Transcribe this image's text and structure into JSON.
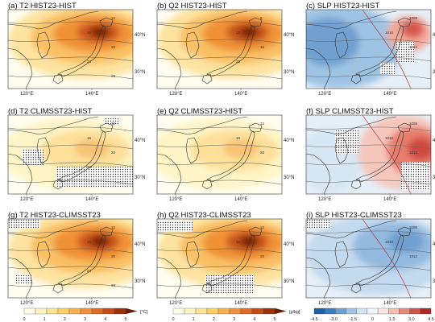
{
  "chart_data": [
    {
      "id": "a",
      "type": "heatmap",
      "title": "(a) T2 HIST23-HIST",
      "variable": "T2",
      "field": "warm",
      "x_ticks": [
        "120°E",
        "140°E"
      ],
      "y_ticks": [
        "40°N",
        "30°N"
      ],
      "contour_labels": [
        "12",
        "16",
        "20",
        "24",
        "28"
      ],
      "hatched": false
    },
    {
      "id": "b",
      "type": "heatmap",
      "title": "(b) Q2 HIST23-HIST",
      "variable": "Q2",
      "field": "warm",
      "x_ticks": [
        "120°E",
        "140°E"
      ],
      "y_ticks": [
        "40°N",
        "30°N"
      ],
      "contour_labels": [
        "8",
        "12",
        "16",
        "20"
      ],
      "hatched": false
    },
    {
      "id": "c",
      "type": "heatmap",
      "title": "(c) SLP HIST23-HIST",
      "variable": "SLP",
      "field": "div_cool_east_warm",
      "x_ticks": [
        "120°E",
        "140°E"
      ],
      "y_ticks": [
        "40°N",
        "30°N"
      ],
      "contour_labels": [
        "1008",
        "1010",
        "1012"
      ],
      "hatched": true
    },
    {
      "id": "d",
      "type": "heatmap",
      "title": "(d) T2 CLIMSST23-HIST",
      "variable": "T2",
      "field": "weak_warm",
      "x_ticks": [
        "120°E",
        "140°E"
      ],
      "y_ticks": [
        "40°N",
        "30°N"
      ],
      "contour_labels": [
        "12",
        "16",
        "20",
        "24"
      ],
      "hatched": true
    },
    {
      "id": "e",
      "type": "heatmap",
      "title": "(e) Q2 CLIMSST23-HIST",
      "variable": "Q2",
      "field": "weak_warm",
      "x_ticks": [
        "120°E",
        "140°E"
      ],
      "y_ticks": [
        "40°N",
        "30°N"
      ],
      "contour_labels": [
        "12",
        "16",
        "20"
      ],
      "hatched": false
    },
    {
      "id": "f",
      "type": "heatmap",
      "title": "(f) SLP CLIMSST23-HIST",
      "variable": "SLP",
      "field": "div_warm_east",
      "x_ticks": [
        "120°E",
        "140°E"
      ],
      "y_ticks": [
        "40°N",
        "30°N"
      ],
      "contour_labels": [
        "1008",
        "1010",
        "1012"
      ],
      "hatched": true
    },
    {
      "id": "g",
      "type": "heatmap",
      "title": "(g) T2 HIST23-CLIMSST23",
      "variable": "T2",
      "field": "warm",
      "x_ticks": [
        "120°E",
        "140°E"
      ],
      "y_ticks": [
        "40°N",
        "30°N"
      ],
      "contour_labels": [
        "12",
        "16",
        "20",
        "24",
        "28"
      ],
      "hatched": true
    },
    {
      "id": "h",
      "type": "heatmap",
      "title": "(h) Q2 HIST23-CLIMSST23",
      "variable": "Q2",
      "field": "warm",
      "x_ticks": [
        "120°E",
        "140°E"
      ],
      "y_ticks": [
        "40°N",
        "30°N"
      ],
      "contour_labels": [
        "12",
        "16",
        "20"
      ],
      "hatched": true
    },
    {
      "id": "i",
      "type": "heatmap",
      "title": "(i) SLP HIST23-CLIMSST23",
      "variable": "SLP",
      "field": "div_cool",
      "x_ticks": [
        "120°E",
        "140°E"
      ],
      "y_ticks": [
        "40°N",
        "30°N"
      ],
      "contour_labels": [
        "1008",
        "1010",
        "1012"
      ],
      "hatched": true
    }
  ],
  "colorbars": [
    {
      "id": "t2",
      "unit": "[°C]",
      "ticks": [
        "0",
        "1",
        "2",
        "3",
        "4",
        "5"
      ],
      "colors": [
        "#fffde6",
        "#fff3bf",
        "#ffe591",
        "#fdcf5f",
        "#f9b14b",
        "#f28f3a",
        "#e06a24",
        "#c84b14",
        "#a0320b",
        "#6e1c05"
      ]
    },
    {
      "id": "q2",
      "unit": "[g/kg]",
      "ticks": [
        "0",
        "1",
        "2",
        "3",
        "4",
        "5"
      ],
      "colors": [
        "#fffde6",
        "#fff3bf",
        "#ffe591",
        "#fdcf5f",
        "#f9b14b",
        "#f28f3a",
        "#e06a24",
        "#c84b14",
        "#a0320b",
        "#6e1c05"
      ]
    },
    {
      "id": "slp",
      "unit": "",
      "ticks": [
        "-4.5",
        "-3.0",
        "-1.5",
        "0",
        "1.5",
        "3.0",
        "4.5"
      ],
      "colors": [
        "#1f5fa8",
        "#3b7dc0",
        "#6fa1d3",
        "#a2c4e4",
        "#d3e4f3",
        "#f0f5fb",
        "#fbe5e0",
        "#f5bfb4",
        "#e88a7a",
        "#d4544a",
        "#b0262b"
      ]
    }
  ]
}
